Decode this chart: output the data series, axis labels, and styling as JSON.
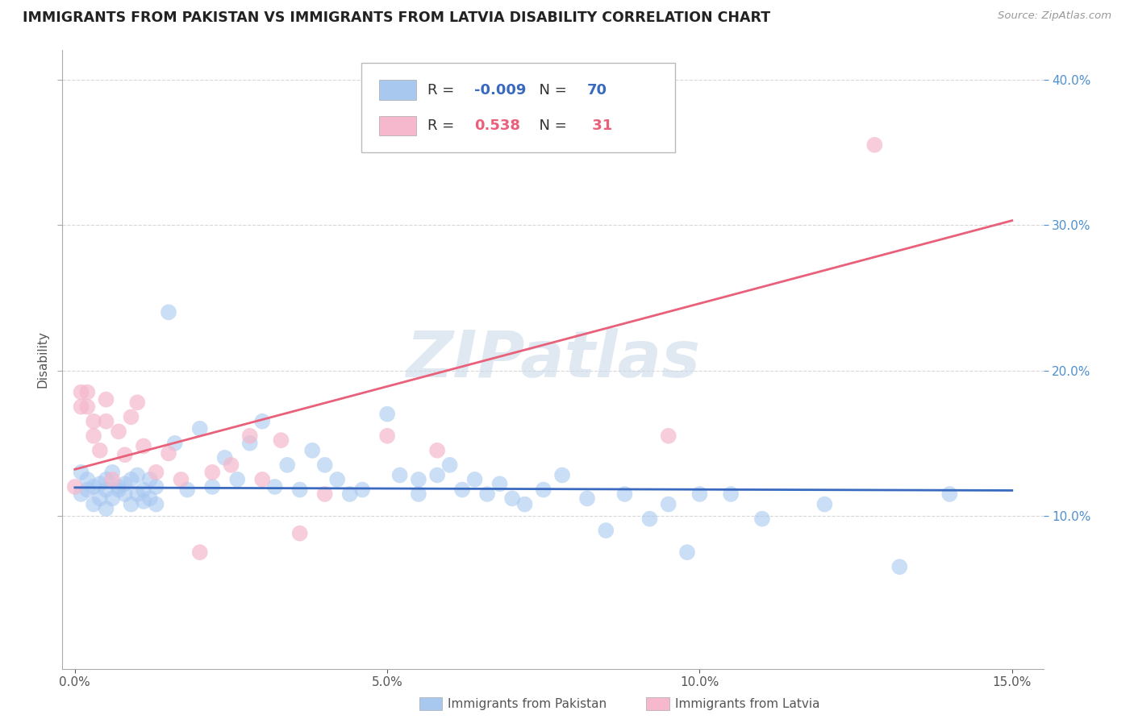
{
  "title": "IMMIGRANTS FROM PAKISTAN VS IMMIGRANTS FROM LATVIA DISABILITY CORRELATION CHART",
  "source": "Source: ZipAtlas.com",
  "ylabel": "Disability",
  "xlabel_pakistan": "Immigrants from Pakistan",
  "xlabel_latvia": "Immigrants from Latvia",
  "xlim": [
    -0.002,
    0.155
  ],
  "ylim": [
    -0.005,
    0.42
  ],
  "yticks_right": [
    0.1,
    0.2,
    0.3,
    0.4
  ],
  "ytick_right_labels": [
    "10.0%",
    "20.0%",
    "30.0%",
    "40.0%"
  ],
  "yticks_grid": [
    0.1,
    0.2,
    0.3,
    0.4
  ],
  "xticks": [
    0.0,
    0.05,
    0.1,
    0.15
  ],
  "xtick_labels": [
    "0.0%",
    "5.0%",
    "10.0%",
    "15.0%"
  ],
  "r_pakistan": -0.009,
  "n_pakistan": 70,
  "r_latvia": 0.538,
  "n_latvia": 31,
  "color_pakistan": "#a8c8f0",
  "color_latvia": "#f5b8cc",
  "line_color_pakistan": "#3a6abf",
  "line_color_latvia": "#e8607a",
  "grid_color": "#d8d8d8",
  "background_color": "#ffffff",
  "watermark": "ZIPatlas",
  "pakistan_x": [
    0.001,
    0.001,
    0.002,
    0.002,
    0.003,
    0.003,
    0.004,
    0.004,
    0.005,
    0.005,
    0.005,
    0.006,
    0.006,
    0.007,
    0.007,
    0.008,
    0.008,
    0.009,
    0.009,
    0.01,
    0.01,
    0.011,
    0.011,
    0.012,
    0.012,
    0.013,
    0.013,
    0.015,
    0.016,
    0.018,
    0.02,
    0.022,
    0.024,
    0.026,
    0.028,
    0.03,
    0.032,
    0.034,
    0.036,
    0.038,
    0.04,
    0.042,
    0.044,
    0.046,
    0.05,
    0.052,
    0.055,
    0.058,
    0.06,
    0.062,
    0.064,
    0.066,
    0.068,
    0.07,
    0.055,
    0.075,
    0.072,
    0.078,
    0.082,
    0.085,
    0.088,
    0.092,
    0.095,
    0.098,
    0.1,
    0.105,
    0.11,
    0.12,
    0.132,
    0.14
  ],
  "pakistan_y": [
    0.13,
    0.115,
    0.125,
    0.118,
    0.12,
    0.108,
    0.112,
    0.122,
    0.118,
    0.125,
    0.105,
    0.13,
    0.112,
    0.12,
    0.118,
    0.115,
    0.122,
    0.108,
    0.125,
    0.115,
    0.128,
    0.11,
    0.118,
    0.125,
    0.112,
    0.12,
    0.108,
    0.24,
    0.15,
    0.118,
    0.16,
    0.12,
    0.14,
    0.125,
    0.15,
    0.165,
    0.12,
    0.135,
    0.118,
    0.145,
    0.135,
    0.125,
    0.115,
    0.118,
    0.17,
    0.128,
    0.115,
    0.128,
    0.135,
    0.118,
    0.125,
    0.115,
    0.122,
    0.112,
    0.125,
    0.118,
    0.108,
    0.128,
    0.112,
    0.09,
    0.115,
    0.098,
    0.108,
    0.075,
    0.115,
    0.115,
    0.098,
    0.108,
    0.065,
    0.115
  ],
  "latvia_x": [
    0.0,
    0.001,
    0.001,
    0.002,
    0.002,
    0.003,
    0.003,
    0.004,
    0.005,
    0.005,
    0.006,
    0.007,
    0.008,
    0.009,
    0.01,
    0.011,
    0.013,
    0.015,
    0.017,
    0.02,
    0.022,
    0.025,
    0.028,
    0.03,
    0.033,
    0.036,
    0.04,
    0.05,
    0.058,
    0.095,
    0.128
  ],
  "latvia_y": [
    0.12,
    0.185,
    0.175,
    0.185,
    0.175,
    0.165,
    0.155,
    0.145,
    0.18,
    0.165,
    0.125,
    0.158,
    0.142,
    0.168,
    0.178,
    0.148,
    0.13,
    0.143,
    0.125,
    0.075,
    0.13,
    0.135,
    0.155,
    0.125,
    0.152,
    0.088,
    0.115,
    0.155,
    0.145,
    0.155,
    0.355
  ],
  "line_pak_x0": 0.0,
  "line_pak_x1": 0.15,
  "line_pak_y0": 0.1195,
  "line_pak_y1": 0.1175,
  "line_lat_x0": 0.0,
  "line_lat_x1": 0.15,
  "line_lat_y0": 0.132,
  "line_lat_y1": 0.303
}
